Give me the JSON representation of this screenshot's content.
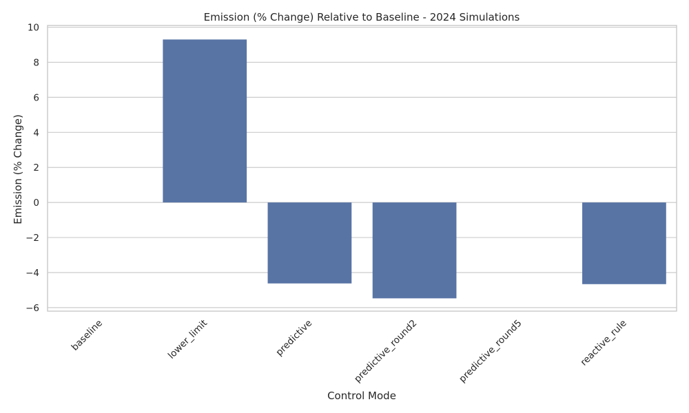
{
  "chart_data": {
    "type": "bar",
    "title": "Emission (% Change) Relative to Baseline - 2024 Simulations",
    "xlabel": "Control Mode",
    "ylabel": "Emission (% Change)",
    "categories": [
      "baseline",
      "lower_limit",
      "predictive",
      "predictive_round2",
      "predictive_round5",
      "reactive_rule"
    ],
    "values": [
      0,
      9.3,
      -4.62,
      -5.47,
      0,
      -4.66
    ],
    "ylim": [
      -6.2,
      10.1
    ],
    "yticks": [
      -6,
      -4,
      -2,
      0,
      2,
      4,
      6,
      8,
      10
    ],
    "ytick_labels": [
      "−6",
      "−4",
      "−2",
      "0",
      "2",
      "4",
      "6",
      "8",
      "10"
    ],
    "grid": true,
    "legend": "none",
    "colors": {
      "bar": "#5874a5",
      "grid": "#cccccc",
      "frame": "#cccccc",
      "text": "#262626",
      "background": "#ffffff"
    }
  }
}
